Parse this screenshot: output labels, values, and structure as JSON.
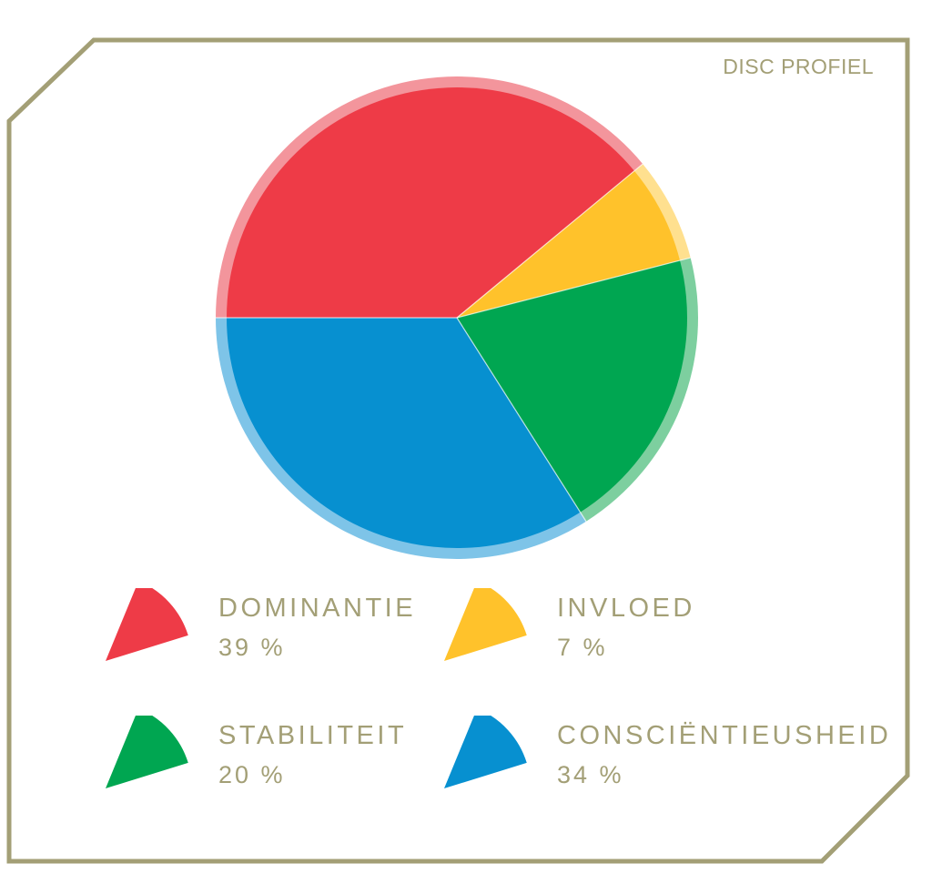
{
  "title": "DISC PROFIEL",
  "chart_data": {
    "type": "pie",
    "title": "DISC PROFIEL",
    "slices": [
      {
        "label": "DOMINANTIE",
        "value": 39,
        "display": "39 %",
        "color": "#ee3b47",
        "rim": "#f3959c"
      },
      {
        "label": "INVLOED",
        "value": 7,
        "display": "7 %",
        "color": "#ffc22b",
        "rim": "#ffe08f"
      },
      {
        "label": "STABILITEIT",
        "value": 20,
        "display": "20 %",
        "color": "#00a651",
        "rim": "#7dcf9f"
      },
      {
        "label": "CONSCIËNTIEUSHEID",
        "value": 34,
        "display": "34 %",
        "color": "#0790d0",
        "rim": "#7ec4e8"
      }
    ],
    "legend_placement": "bottom"
  },
  "colors": {
    "frame": "#a39f76",
    "text": "#a39f76"
  }
}
